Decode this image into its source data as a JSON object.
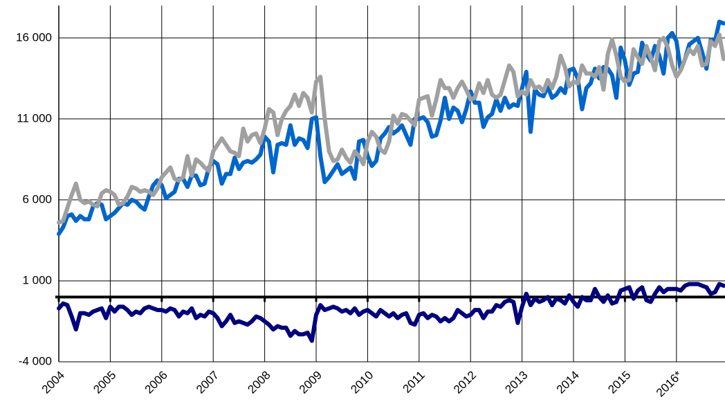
{
  "chart_data": {
    "type": "line",
    "categories": [
      "2004",
      null,
      null,
      null,
      null,
      null,
      null,
      null,
      null,
      null,
      null,
      null,
      "2005",
      null,
      null,
      null,
      null,
      null,
      null,
      null,
      null,
      null,
      null,
      null,
      "2006",
      null,
      null,
      null,
      null,
      null,
      null,
      null,
      null,
      null,
      null,
      null,
      "2007",
      null,
      null,
      null,
      null,
      null,
      null,
      null,
      null,
      null,
      null,
      null,
      "2008",
      null,
      null,
      null,
      null,
      null,
      null,
      null,
      null,
      null,
      null,
      null,
      "2009",
      null,
      null,
      null,
      null,
      null,
      null,
      null,
      null,
      null,
      null,
      null,
      "2010",
      null,
      null,
      null,
      null,
      null,
      null,
      null,
      null,
      null,
      null,
      null,
      "2011",
      null,
      null,
      null,
      null,
      null,
      null,
      null,
      null,
      null,
      null,
      null,
      "2012",
      null,
      null,
      null,
      null,
      null,
      null,
      null,
      null,
      null,
      null,
      null,
      "2013",
      null,
      null,
      null,
      null,
      null,
      null,
      null,
      null,
      null,
      null,
      null,
      "2014",
      null,
      null,
      null,
      null,
      null,
      null,
      null,
      null,
      null,
      null,
      null,
      "2015",
      null,
      null,
      null,
      null,
      null,
      null,
      null,
      null,
      null,
      null,
      null,
      "2016*",
      null,
      null,
      null,
      null,
      null,
      null,
      null,
      null,
      null,
      null,
      null
    ],
    "series": [
      {
        "color": "#0066cc",
        "values": [
          3900,
          4300,
          5000,
          5100,
          4700,
          5000,
          4800,
          4800,
          5600,
          5800,
          5700,
          4800,
          5000,
          5200,
          5500,
          5800,
          5700,
          6000,
          5900,
          5600,
          5400,
          6200,
          6900,
          7200,
          6900,
          6100,
          6300,
          6500,
          7300,
          7300,
          6800,
          7500,
          7500,
          6900,
          7000,
          8000,
          8400,
          8200,
          7000,
          7600,
          7600,
          8600,
          7900,
          8300,
          8400,
          8300,
          8500,
          8800,
          9900,
          9600,
          7700,
          9400,
          9500,
          9400,
          10600,
          9400,
          9800,
          9700,
          9200,
          11000,
          11100,
          8700,
          7100,
          7400,
          7800,
          8200,
          7600,
          7800,
          8000,
          7300,
          9600,
          9700,
          8700,
          8100,
          8400,
          9800,
          10100,
          10500,
          10100,
          10300,
          10600,
          10000,
          9400,
          11000,
          11000,
          11100,
          10800,
          9900,
          10000,
          10900,
          12300,
          11000,
          11700,
          11500,
          10800,
          11600,
          12700,
          12000,
          12000,
          10500,
          11100,
          11300,
          12200,
          11500,
          12300,
          11700,
          11900,
          11800,
          12900,
          13900,
          10200,
          12800,
          12500,
          12400,
          13000,
          12300,
          12500,
          12900,
          12600,
          14000,
          14100,
          13500,
          11600,
          12900,
          13200,
          14100,
          13500,
          14200,
          14100,
          13700,
          12300,
          15400,
          14600,
          13100,
          13800,
          13900,
          15700,
          15000,
          14600,
          15500,
          14900,
          13800,
          16000,
          16300,
          15800,
          14000,
          14700,
          15600,
          15800,
          16000,
          15100,
          14100,
          15900,
          15800,
          17000,
          16900
        ]
      },
      {
        "color": "#a0a0a0",
        "values": [
          4600,
          4700,
          5500,
          6300,
          7000,
          6000,
          5800,
          5900,
          5700,
          5600,
          6400,
          6600,
          6500,
          6300,
          5700,
          5800,
          6200,
          6800,
          6700,
          6500,
          6600,
          6500,
          6300,
          6700,
          7400,
          7700,
          8000,
          7300,
          7200,
          7400,
          8700,
          7500,
          8500,
          8300,
          8000,
          7800,
          9000,
          9400,
          9800,
          9400,
          9000,
          8900,
          8700,
          10400,
          9600,
          10000,
          10100,
          9500,
          10400,
          11600,
          11400,
          10000,
          11000,
          11500,
          11800,
          12500,
          11800,
          12600,
          12300,
          11400,
          13300,
          13600,
          11000,
          9000,
          8400,
          8500,
          9100,
          8600,
          8300,
          9000,
          8700,
          8200,
          9600,
          10200,
          9900,
          9100,
          8900,
          9600,
          11200,
          10700,
          11300,
          11200,
          10900,
          10600,
          12200,
          12300,
          12400,
          11200,
          12200,
          13400,
          12900,
          12900,
          12300,
          12900,
          13300,
          12800,
          12200,
          12300,
          13200,
          12600,
          13400,
          12500,
          12300,
          12500,
          13400,
          14300,
          13900,
          12400,
          12700,
          12500,
          13400,
          12900,
          13000,
          12700,
          13400,
          12900,
          13600,
          14900,
          14200,
          13000,
          13300,
          13200,
          14300,
          13800,
          13800,
          13600,
          14200,
          12800,
          15000,
          15900,
          14900,
          13600,
          13300,
          13400,
          15300,
          14800,
          14400,
          15500,
          14800,
          14000,
          15800,
          16000,
          15400,
          14300,
          13600,
          14000,
          14700,
          15300,
          15000,
          15500,
          14300,
          14400,
          15800,
          15500,
          16200,
          14700
        ]
      },
      {
        "color": "#000080",
        "values": [
          -700,
          -400,
          -500,
          -1200,
          -2000,
          -1000,
          -1000,
          -1100,
          -900,
          -800,
          -700,
          -1300,
          -600,
          -900,
          -600,
          -600,
          -800,
          -1100,
          -900,
          -1000,
          -700,
          -600,
          -700,
          -800,
          -800,
          -900,
          -700,
          -800,
          -1200,
          -900,
          -1000,
          -700,
          -1300,
          -1100,
          -1200,
          -900,
          -1000,
          -1300,
          -1800,
          -1500,
          -1100,
          -1600,
          -1500,
          -1600,
          -1700,
          -1500,
          -1200,
          -1300,
          -1500,
          -1700,
          -2000,
          -1800,
          -1900,
          -1900,
          -2400,
          -2100,
          -2300,
          -2300,
          -2200,
          -2700,
          -1100,
          -500,
          -800,
          -700,
          -600,
          -700,
          -900,
          -800,
          -1000,
          -700,
          -1100,
          -900,
          -800,
          -1000,
          -1200,
          -800,
          -1000,
          -1200,
          -1000,
          -1300,
          -1100,
          -1000,
          -1600,
          -1700,
          -1100,
          -1000,
          -1300,
          -1100,
          -1200,
          -1500,
          -1300,
          -1500,
          -1300,
          -800,
          -1000,
          -1200,
          -1100,
          -800,
          -800,
          -1300,
          -900,
          -900,
          -500,
          -600,
          -300,
          -200,
          -300,
          -1600,
          -600,
          200,
          -500,
          -100,
          -300,
          -200,
          0,
          -500,
          -100,
          -200,
          -400,
          100,
          -300,
          -600,
          0,
          -200,
          -200,
          500,
          0,
          -300,
          100,
          -400,
          -300,
          400,
          500,
          600,
          -100,
          400,
          600,
          -200,
          -300,
          200,
          600,
          300,
          500,
          500,
          500,
          400,
          700,
          800,
          800,
          800,
          700,
          600,
          200,
          300,
          800,
          700
        ]
      }
    ],
    "ylim": [
      -4000,
      18000
    ],
    "yticks": [
      {
        "value": -4000,
        "label": "-4 000"
      },
      {
        "value": 1000,
        "label": "1 000"
      },
      {
        "value": 6000,
        "label": "6 000"
      },
      {
        "value": 11000,
        "label": "11 000"
      },
      {
        "value": 16000,
        "label": "16 000"
      }
    ],
    "grid": true
  }
}
